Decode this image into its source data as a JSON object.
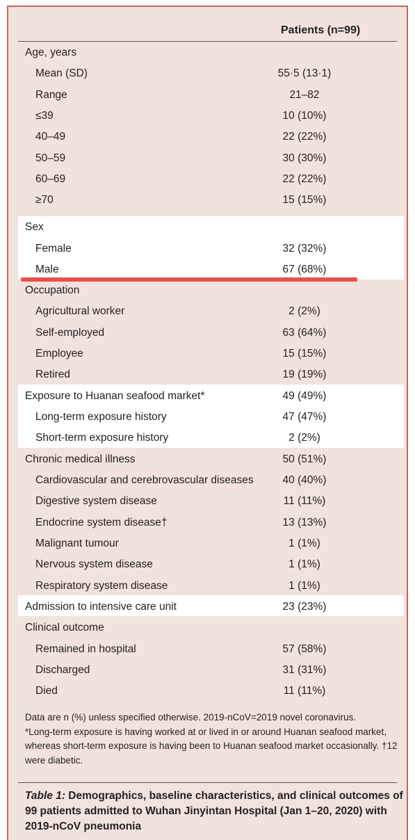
{
  "table": {
    "column_header": "Patients (n=99)",
    "rows": [
      {
        "label": "Age, years",
        "value": ""
      },
      {
        "label": "Mean (SD)",
        "value": "55·5 (13·1)"
      },
      {
        "label": "Range",
        "value": "21–82"
      },
      {
        "label": "≤39",
        "value": "10 (10%)"
      },
      {
        "label": "40–49",
        "value": "22 (22%)"
      },
      {
        "label": "50–59",
        "value": "30 (30%)"
      },
      {
        "label": "60–69",
        "value": "22 (22%)"
      },
      {
        "label": "≥70",
        "value": "15 (15%)"
      },
      {
        "label": "Sex",
        "value": ""
      },
      {
        "label": "Female",
        "value": "32 (32%)"
      },
      {
        "label": "Male",
        "value": "67 (68%)"
      },
      {
        "label": "Occupation",
        "value": ""
      },
      {
        "label": "Agricultural worker",
        "value": "2 (2%)"
      },
      {
        "label": "Self-employed",
        "value": "63 (64%)"
      },
      {
        "label": "Employee",
        "value": "15 (15%)"
      },
      {
        "label": "Retired",
        "value": "19 (19%)"
      },
      {
        "label": "Exposure to Huanan seafood market*",
        "value": "49 (49%)"
      },
      {
        "label": "Long-term exposure history",
        "value": "47 (47%)"
      },
      {
        "label": "Short-term exposure history",
        "value": "2 (2%)"
      },
      {
        "label": "Chronic medical illness",
        "value": "50 (51%)"
      },
      {
        "label": "Cardiovascular and cerebrovascular diseases",
        "value": "40 (40%)"
      },
      {
        "label": "Digestive system disease",
        "value": "11 (11%)"
      },
      {
        "label": "Endocrine system disease†",
        "value": "13 (13%)"
      },
      {
        "label": "Malignant tumour",
        "value": "1 (1%)"
      },
      {
        "label": "Nervous system disease",
        "value": "1 (1%)"
      },
      {
        "label": "Respiratory system disease",
        "value": "1 (1%)"
      },
      {
        "label": "Admission to intensive care unit",
        "value": "23 (23%)"
      },
      {
        "label": "Clinical outcome",
        "value": ""
      },
      {
        "label": "Remained in hospital",
        "value": "57 (58%)"
      },
      {
        "label": "Discharged",
        "value": "31 (31%)"
      },
      {
        "label": "Died",
        "value": "11 (11%)"
      }
    ]
  },
  "footnote": {
    "line1": "Data are n (%) unless specified otherwise. 2019-nCoV=2019 novel coronavirus.",
    "line2": "*Long-term exposure is having worked at or lived in or around Huanan seafood market, whereas short-term exposure is having been to Huanan seafood market occasionally. †12 were diabetic."
  },
  "caption": {
    "label": "Table 1:",
    "text": " Demographics, baseline characteristics, and clinical outcomes of 99 patients admitted to Wuhan Jinyintan Hospital (Jan 1–20, 2020) with 2019-nCoV pneumonia"
  },
  "colors": {
    "background": "#f2e2dd",
    "highlight": "#ffffff",
    "annotation": "#e8504a",
    "border": "#c6655f"
  }
}
